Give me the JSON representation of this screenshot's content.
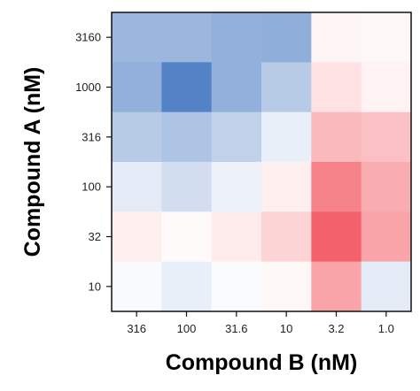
{
  "chart_data": {
    "type": "heatmap",
    "xlabel": "Compound B (nM)",
    "ylabel": "Compound A (nM)",
    "x_categories": [
      "316",
      "100",
      "31.6",
      "10",
      "3.2",
      "1.0"
    ],
    "y_categories": [
      "3160",
      "1000",
      "316",
      "100",
      "32",
      "10"
    ],
    "color_scale": {
      "negative": "#4a7cc3",
      "neutral": "#ffffff",
      "positive": "#f25a62"
    },
    "values": [
      [
        -0.55,
        -0.55,
        -0.6,
        -0.62,
        0.06,
        0.05
      ],
      [
        -0.6,
        -0.95,
        -0.6,
        -0.4,
        0.18,
        0.08
      ],
      [
        -0.4,
        -0.45,
        -0.35,
        -0.12,
        0.42,
        0.38
      ],
      [
        -0.15,
        -0.25,
        -0.1,
        0.1,
        0.75,
        0.5
      ],
      [
        0.1,
        0.03,
        0.12,
        0.26,
        0.95,
        0.55
      ],
      [
        -0.04,
        -0.12,
        -0.03,
        0.05,
        0.55,
        -0.15
      ]
    ],
    "grid": false,
    "legend": "none"
  }
}
